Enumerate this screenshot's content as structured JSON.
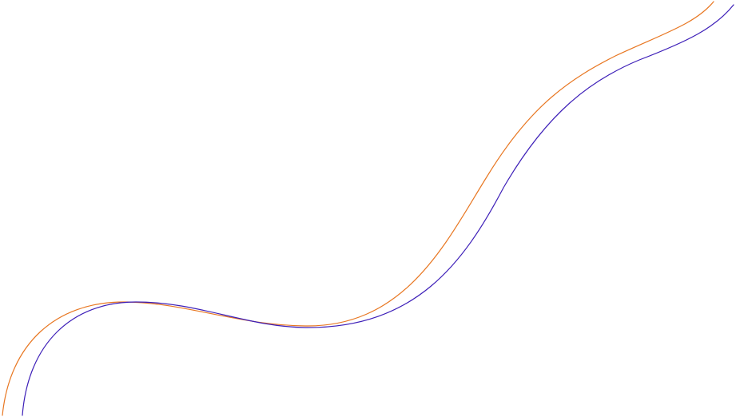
{
  "canvas": {
    "background": "#ffffff"
  },
  "curves": [
    {
      "id": "orange-curve",
      "color": "#e87722"
    },
    {
      "id": "blue-curve",
      "color": "#3d1fb8"
    }
  ]
}
